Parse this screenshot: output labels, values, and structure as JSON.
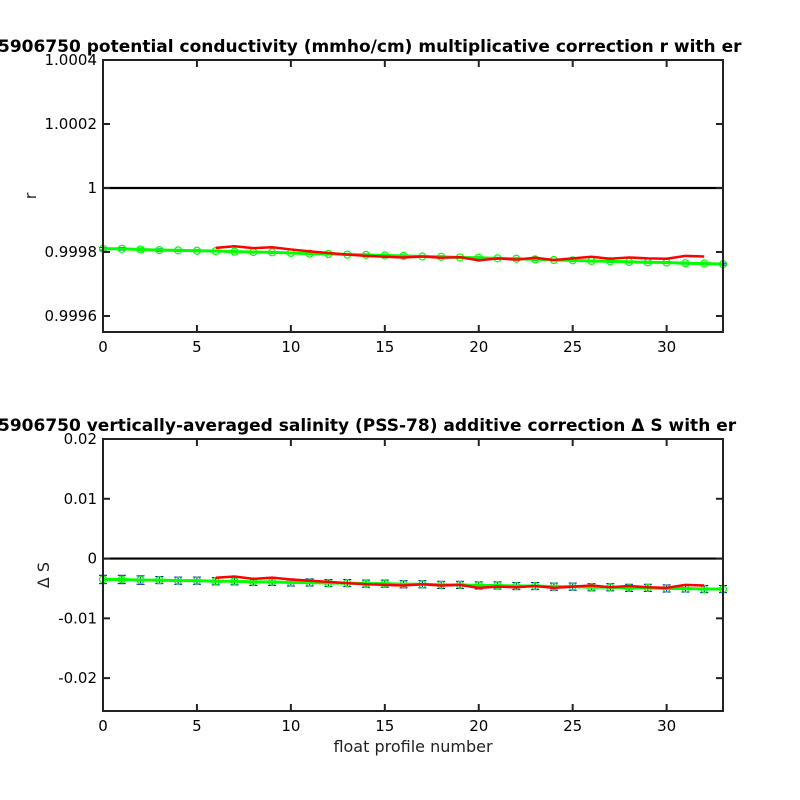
{
  "chart_data": [
    {
      "type": "line",
      "title": "5906750 potential conductivity (mmho/cm) multiplicative correction r with er",
      "xlabel": "",
      "ylabel": "r",
      "xlim": [
        0,
        33
      ],
      "ylim": [
        0.99955,
        1.0004
      ],
      "xticks": [
        0,
        5,
        10,
        15,
        20,
        25,
        30
      ],
      "yticks": [
        0.9996,
        0.9998,
        1,
        1.0002,
        1.0004
      ],
      "ytick_labels": [
        "0.9996",
        "0.9998",
        "1",
        "1.0002",
        "1.0004"
      ],
      "reference_line": 1,
      "colors": {
        "reference": "#000000",
        "fit": "#00ff00",
        "profile": "#ff0000",
        "errorbar": "#0000cc"
      },
      "series": [
        {
          "x": [
            0,
            1,
            2,
            3,
            4,
            5,
            6,
            7,
            8,
            9,
            10,
            11,
            12,
            13,
            14,
            15,
            16,
            17,
            18,
            19,
            20,
            21,
            22,
            23,
            24,
            25,
            26,
            27,
            28,
            29,
            30,
            31,
            32,
            33
          ],
          "values": [
            0.99981,
            0.99981,
            0.999808,
            0.999806,
            0.999805,
            0.999804,
            0.999803,
            0.999801,
            0.9998,
            0.999799,
            0.999797,
            0.999795,
            0.999794,
            0.999792,
            0.999791,
            0.999789,
            0.999788,
            0.999786,
            0.999785,
            0.999783,
            0.999782,
            0.99978,
            0.999779,
            0.999777,
            0.999775,
            0.999774,
            0.999772,
            0.999771,
            0.999769,
            0.999768,
            0.999767,
            0.999765,
            0.999764,
            0.999762
          ],
          "errors": [
            4e-06,
            4e-06,
            4e-06,
            4e-06,
            3e-06,
            3e-06,
            3e-06,
            3e-06,
            3e-06,
            3e-06,
            3e-06,
            3e-06,
            3e-06,
            3e-06,
            3e-06,
            3e-06,
            3e-06,
            3e-06,
            3e-06,
            3e-06,
            3e-06,
            3e-06,
            3e-06,
            3e-06,
            3e-06,
            3e-06,
            3e-06,
            3e-06,
            3e-06,
            3e-06,
            3e-06,
            3e-06,
            3e-06,
            3e-06
          ]
        },
        {
          "x": [
            6,
            7,
            8,
            9,
            10,
            11,
            12,
            13,
            14,
            15,
            16,
            17,
            18,
            19,
            20,
            21,
            22,
            23,
            24,
            25,
            26,
            27,
            28,
            29,
            30,
            31,
            32
          ],
          "values": [
            0.999813,
            0.999818,
            0.999812,
            0.999815,
            0.999808,
            0.999802,
            0.999797,
            0.999792,
            0.999788,
            0.999785,
            0.999783,
            0.999786,
            0.999782,
            0.999784,
            0.999774,
            0.99978,
            0.999776,
            0.999782,
            0.999775,
            0.99978,
            0.999785,
            0.999779,
            0.999783,
            0.99978,
            0.999779,
            0.999788,
            0.999786
          ]
        }
      ]
    },
    {
      "type": "line",
      "title": "5906750 vertically-averaged salinity (PSS-78) additive correction Δ S with er",
      "xlabel": "float profile number",
      "ylabel": "Δ S",
      "xlim": [
        0,
        33
      ],
      "ylim": [
        -0.0255,
        0.02
      ],
      "xticks": [
        0,
        5,
        10,
        15,
        20,
        25,
        30
      ],
      "yticks": [
        -0.02,
        -0.01,
        0,
        0.01,
        0.02
      ],
      "ytick_labels": [
        "-0.02",
        "-0.01",
        "0",
        "0.01",
        "0.02"
      ],
      "reference_line": 0,
      "colors": {
        "reference": "#000000",
        "fit": "#00ff00",
        "profile": "#ff0000",
        "errorbar": "#0000cc"
      },
      "series": [
        {
          "x": [
            0,
            1,
            2,
            3,
            4,
            5,
            6,
            7,
            8,
            9,
            10,
            11,
            12,
            13,
            14,
            15,
            16,
            17,
            18,
            19,
            20,
            21,
            22,
            23,
            24,
            25,
            26,
            27,
            28,
            29,
            30,
            31,
            32,
            33
          ],
          "values": [
            -0.0035,
            -0.0035,
            -0.0036,
            -0.0036,
            -0.0037,
            -0.0037,
            -0.0038,
            -0.0038,
            -0.0039,
            -0.0039,
            -0.004,
            -0.004,
            -0.0041,
            -0.0041,
            -0.0042,
            -0.0042,
            -0.0043,
            -0.0043,
            -0.0044,
            -0.0044,
            -0.0045,
            -0.0045,
            -0.0046,
            -0.0046,
            -0.0047,
            -0.0047,
            -0.0048,
            -0.0048,
            -0.0049,
            -0.0049,
            -0.005,
            -0.005,
            -0.0051,
            -0.0051
          ],
          "errors": [
            0.0007,
            0.0007,
            0.0007,
            0.0006,
            0.0006,
            0.0006,
            0.0006,
            0.0006,
            0.0006,
            0.0006,
            0.0006,
            0.0006,
            0.0006,
            0.0006,
            0.0006,
            0.0006,
            0.0006,
            0.0006,
            0.0006,
            0.0006,
            0.0006,
            0.0006,
            0.0006,
            0.0006,
            0.0006,
            0.0006,
            0.0006,
            0.0006,
            0.0006,
            0.0006,
            0.0006,
            0.0006,
            0.0006,
            0.0006
          ]
        },
        {
          "x": [
            6,
            7,
            8,
            9,
            10,
            11,
            12,
            13,
            14,
            15,
            16,
            17,
            18,
            19,
            20,
            21,
            22,
            23,
            24,
            25,
            26,
            27,
            28,
            29,
            30,
            31,
            32
          ],
          "values": [
            -0.0032,
            -0.003,
            -0.0034,
            -0.0032,
            -0.0035,
            -0.0037,
            -0.0039,
            -0.0041,
            -0.0043,
            -0.0044,
            -0.0045,
            -0.0043,
            -0.0045,
            -0.0044,
            -0.0049,
            -0.0047,
            -0.0048,
            -0.0046,
            -0.0049,
            -0.0047,
            -0.0045,
            -0.0048,
            -0.0046,
            -0.0048,
            -0.0049,
            -0.0044,
            -0.0045
          ]
        }
      ]
    }
  ]
}
